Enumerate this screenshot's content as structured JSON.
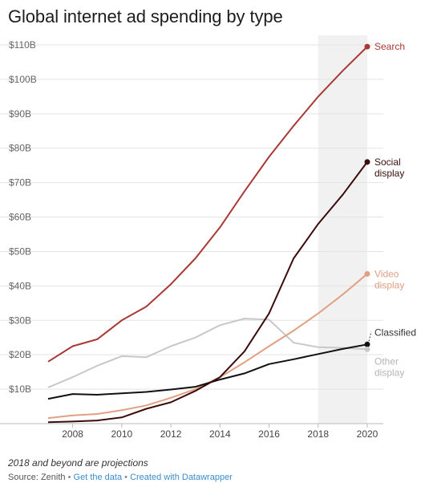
{
  "title": "Global internet ad spending by type",
  "note": "2018 and beyond are projections",
  "footer": {
    "source": "Source: Zenith",
    "get_data": "Get the data",
    "created_with": "Created with Datawrapper",
    "separator": "•"
  },
  "chart_data": {
    "type": "line",
    "title": "Global internet ad spending by type",
    "xlabel": "",
    "ylabel": "",
    "xlim": [
      2007,
      2020
    ],
    "ylim": [
      0,
      110
    ],
    "x_ticks": [
      2008,
      2010,
      2012,
      2014,
      2016,
      2018,
      2020
    ],
    "x_tick_labels": [
      "2008",
      "2010",
      "2012",
      "2014",
      "2016",
      "2018",
      "2020"
    ],
    "y_ticks": [
      10,
      20,
      30,
      40,
      50,
      60,
      70,
      80,
      90,
      100,
      110
    ],
    "y_tick_labels": [
      "$10B",
      "$20B",
      "$30B",
      "$40B",
      "$50B",
      "$60B",
      "$70B",
      "$80B",
      "$90B",
      "$100B",
      "$110B"
    ],
    "grid": true,
    "projection_band": [
      2018,
      2020
    ],
    "x": [
      2007,
      2008,
      2009,
      2010,
      2011,
      2012,
      2013,
      2014,
      2015,
      2016,
      2017,
      2018,
      2019,
      2020
    ],
    "series": [
      {
        "name": "Search",
        "color": "#a83a36",
        "label_lines": [
          "Search"
        ],
        "values": [
          18,
          22.5,
          24.5,
          30,
          34,
          40.5,
          48,
          57,
          67.5,
          77.5,
          86.5,
          95,
          102.5,
          109.5
        ]
      },
      {
        "name": "Social display",
        "color": "#3a0c0c",
        "label_lines": [
          "Social",
          "display"
        ],
        "values": [
          0.4,
          0.6,
          0.9,
          1.8,
          4.3,
          6.2,
          9.5,
          13.5,
          21,
          32,
          48,
          58,
          66.5,
          76
        ]
      },
      {
        "name": "Video display",
        "color": "#e2a083",
        "label_lines": [
          "Video",
          "display"
        ],
        "values": [
          1.6,
          2.4,
          2.8,
          3.9,
          5.3,
          7.5,
          10,
          13.5,
          17.8,
          22.5,
          27,
          32,
          37.5,
          43.5
        ]
      },
      {
        "name": "Classified",
        "color": "#111111",
        "label_lines": [
          "Classified"
        ],
        "values": [
          7.2,
          8.6,
          8.4,
          8.8,
          9.2,
          9.9,
          10.7,
          12.8,
          14.6,
          17.3,
          18.7,
          20.2,
          21.7,
          23
        ]
      },
      {
        "name": "Other display",
        "color": "#c8c8c8",
        "label_lines": [
          "Other",
          "display"
        ],
        "values": [
          10.5,
          13.5,
          16.8,
          19.6,
          19.3,
          22.5,
          25,
          28.6,
          30.5,
          30.2,
          23.5,
          22.2,
          22,
          21.6
        ]
      }
    ]
  }
}
